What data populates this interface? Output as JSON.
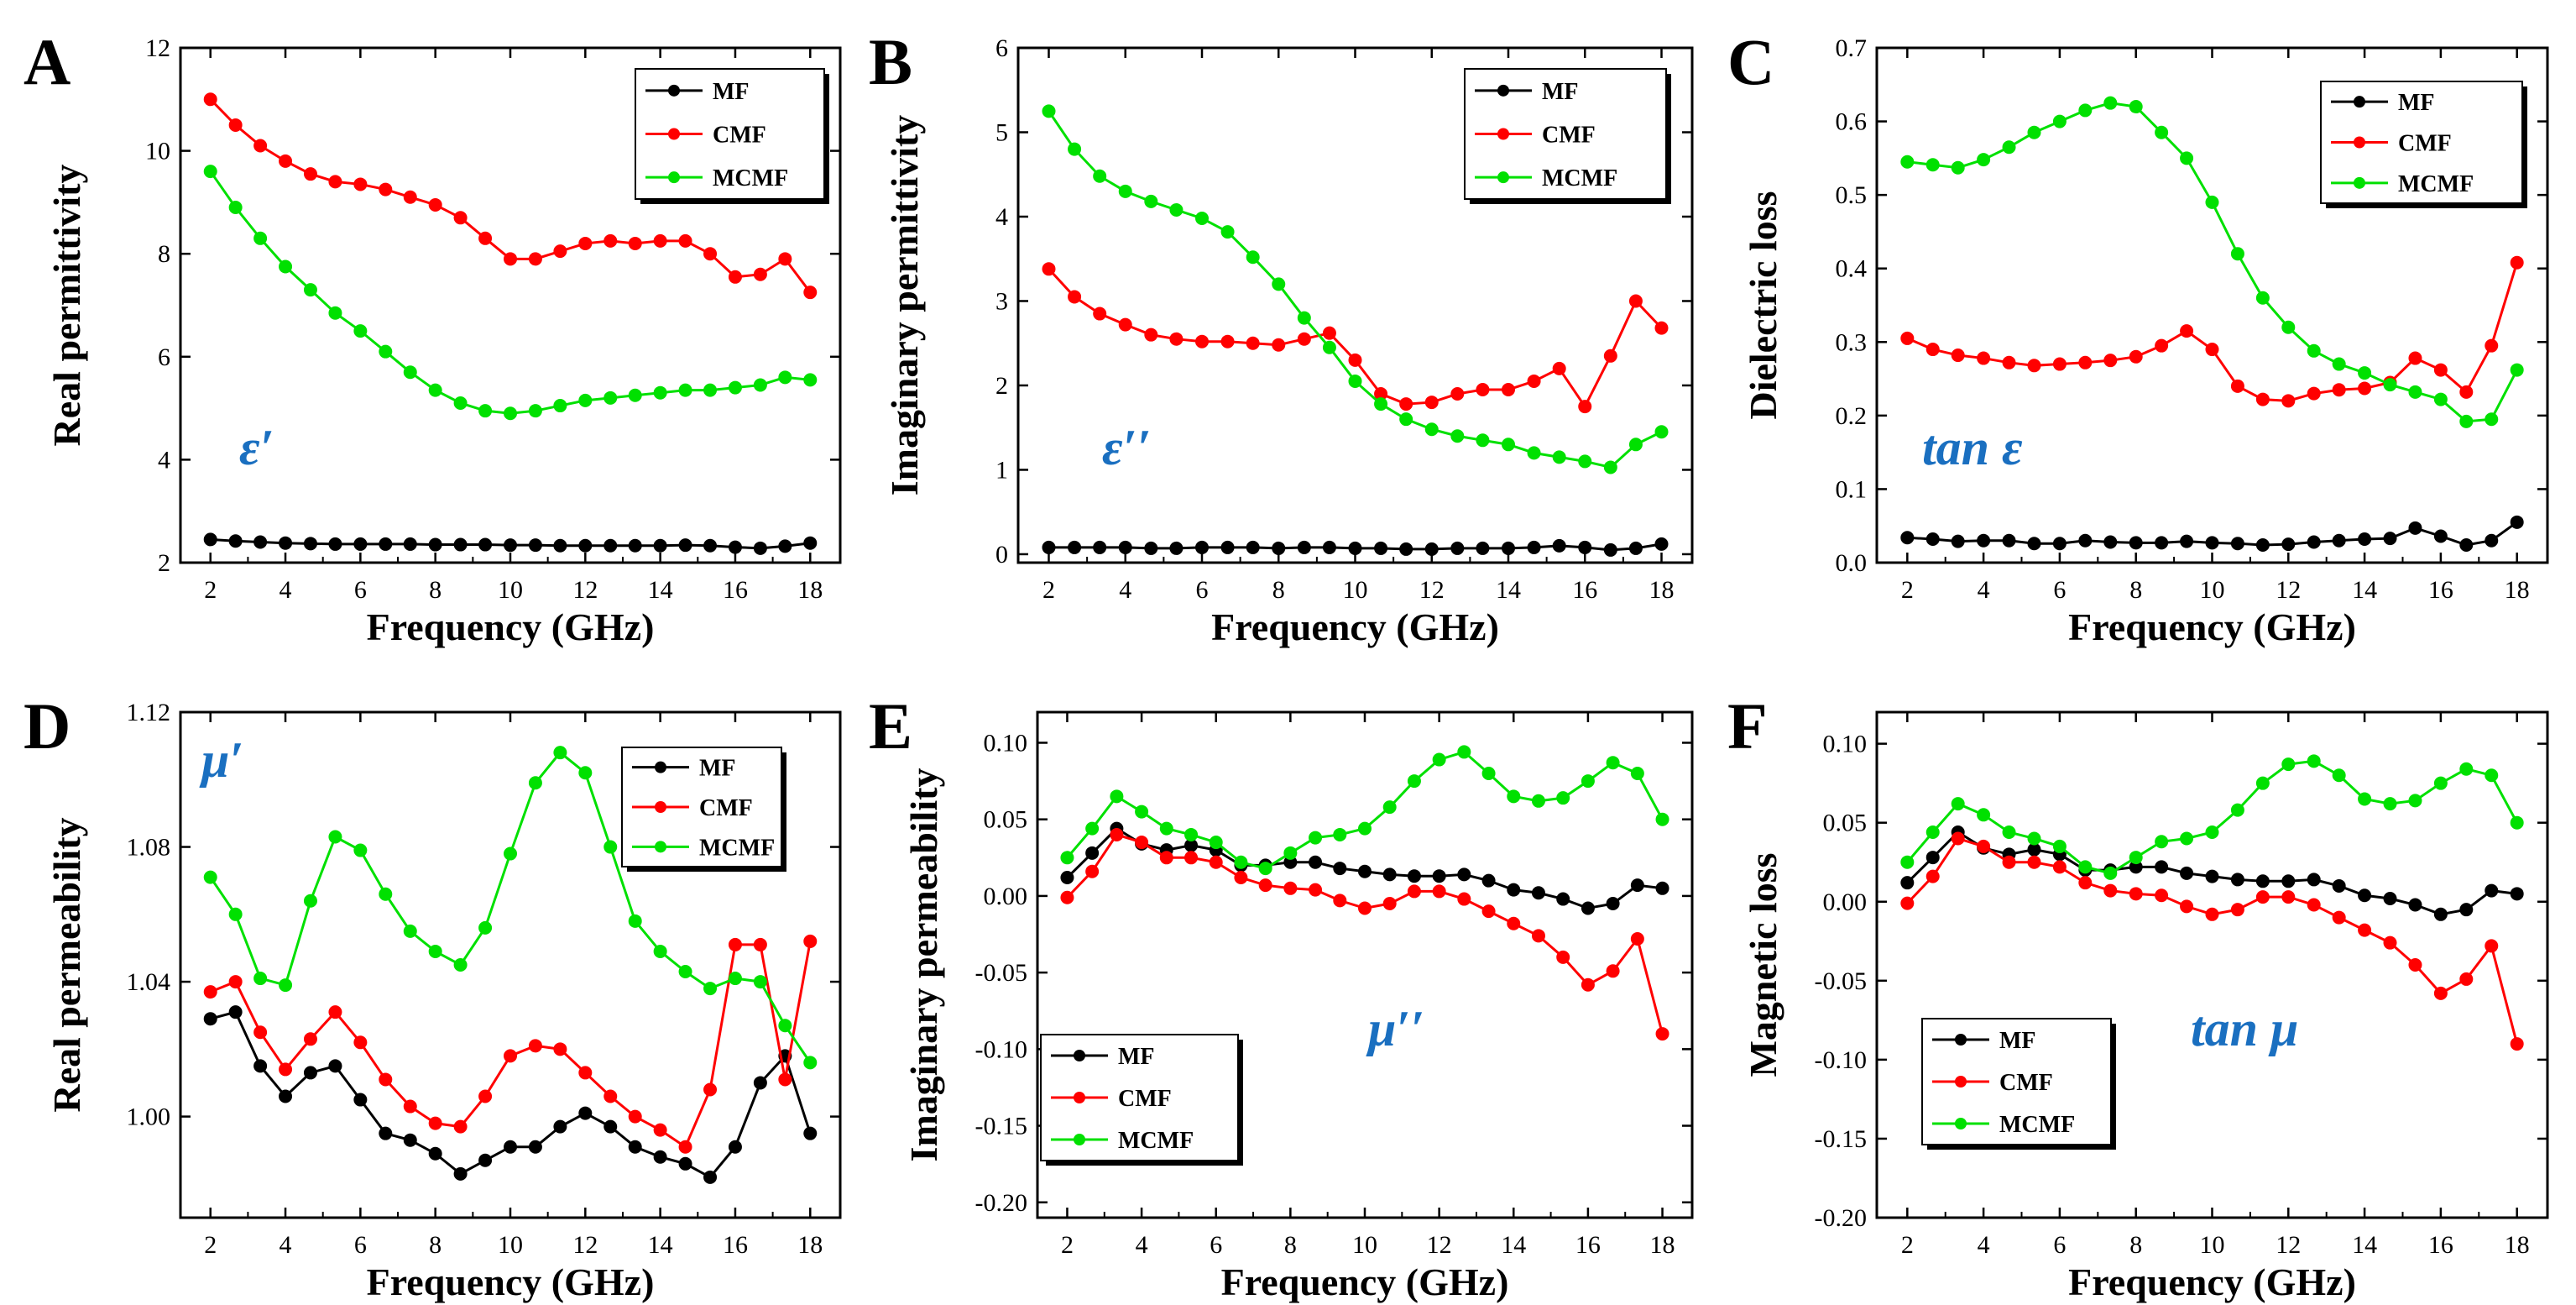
{
  "figure": {
    "background": "#ffffff"
  },
  "series_styles": {
    "MF": {
      "color": "#000000"
    },
    "CMF": {
      "color": "#ff0000"
    },
    "MCMF": {
      "color": "#00e000"
    }
  },
  "annotation_color": "#1a6fc0",
  "chart_data": [
    {
      "panel": "A",
      "type": "line",
      "title": "",
      "xlabel": "Frequency (GHz)",
      "ylabel": "Real permittivity",
      "xlim": [
        1.2,
        18.8
      ],
      "ylim": [
        2,
        12
      ],
      "xticks": [
        "2",
        "4",
        "6",
        "8",
        "10",
        "12",
        "14",
        "16",
        "18"
      ],
      "yticks": [
        "2",
        "4",
        "6",
        "8",
        "10",
        "12"
      ],
      "annotation": "ε′",
      "legend": "top-right",
      "x": [
        2,
        2.67,
        3.33,
        4,
        4.67,
        5.33,
        6,
        6.67,
        7.33,
        8,
        8.67,
        9.33,
        10,
        10.67,
        11.33,
        12,
        12.67,
        13.33,
        14,
        14.67,
        15.33,
        16,
        16.67,
        17.33,
        18
      ],
      "series": [
        {
          "name": "MF",
          "values": [
            2.45,
            2.42,
            2.4,
            2.38,
            2.37,
            2.36,
            2.36,
            2.36,
            2.36,
            2.35,
            2.35,
            2.35,
            2.34,
            2.34,
            2.33,
            2.33,
            2.33,
            2.33,
            2.33,
            2.34,
            2.33,
            2.3,
            2.28,
            2.32,
            2.38
          ]
        },
        {
          "name": "CMF",
          "values": [
            11.0,
            10.5,
            10.1,
            9.8,
            9.55,
            9.4,
            9.35,
            9.25,
            9.1,
            8.95,
            8.7,
            8.3,
            7.9,
            7.9,
            8.05,
            8.2,
            8.25,
            8.2,
            8.25,
            8.25,
            8.0,
            7.55,
            7.6,
            7.9,
            7.25
          ]
        },
        {
          "name": "MCMF",
          "values": [
            9.6,
            8.9,
            8.3,
            7.75,
            7.3,
            6.85,
            6.5,
            6.1,
            5.7,
            5.35,
            5.1,
            4.95,
            4.9,
            4.95,
            5.05,
            5.15,
            5.2,
            5.25,
            5.3,
            5.35,
            5.35,
            5.4,
            5.45,
            5.6,
            5.55
          ]
        }
      ]
    },
    {
      "panel": "B",
      "type": "line",
      "title": "",
      "xlabel": "Frequency (GHz)",
      "ylabel": "Imaginary permittivity",
      "xlim": [
        1.2,
        18.8
      ],
      "ylim": [
        -0.1,
        6
      ],
      "xticks": [
        "2",
        "4",
        "6",
        "8",
        "10",
        "12",
        "14",
        "16",
        "18"
      ],
      "yticks": [
        "0",
        "1",
        "2",
        "3",
        "4",
        "5",
        "6"
      ],
      "annotation": "ε′′",
      "legend": "top-right",
      "x": [
        2,
        2.67,
        3.33,
        4,
        4.67,
        5.33,
        6,
        6.67,
        7.33,
        8,
        8.67,
        9.33,
        10,
        10.67,
        11.33,
        12,
        12.67,
        13.33,
        14,
        14.67,
        15.33,
        16,
        16.67,
        17.33,
        18
      ],
      "series": [
        {
          "name": "MF",
          "values": [
            0.08,
            0.08,
            0.08,
            0.08,
            0.07,
            0.07,
            0.08,
            0.08,
            0.08,
            0.07,
            0.08,
            0.08,
            0.07,
            0.07,
            0.06,
            0.06,
            0.07,
            0.07,
            0.07,
            0.08,
            0.1,
            0.08,
            0.05,
            0.07,
            0.12
          ]
        },
        {
          "name": "CMF",
          "values": [
            3.38,
            3.05,
            2.85,
            2.72,
            2.6,
            2.55,
            2.52,
            2.52,
            2.5,
            2.48,
            2.55,
            2.62,
            2.3,
            1.9,
            1.78,
            1.8,
            1.9,
            1.95,
            1.95,
            2.05,
            2.2,
            1.75,
            2.35,
            3.0,
            2.68
          ]
        },
        {
          "name": "MCMF",
          "values": [
            5.25,
            4.8,
            4.48,
            4.3,
            4.18,
            4.08,
            3.98,
            3.82,
            3.52,
            3.2,
            2.8,
            2.45,
            2.05,
            1.78,
            1.6,
            1.48,
            1.4,
            1.35,
            1.3,
            1.2,
            1.15,
            1.1,
            1.03,
            1.3,
            1.45
          ]
        }
      ]
    },
    {
      "panel": "C",
      "type": "line",
      "title": "",
      "xlabel": "Frequency (GHz)",
      "ylabel": "Dielectric loss",
      "xlim": [
        1.2,
        18.8
      ],
      "ylim": [
        0,
        0.7
      ],
      "xticks": [
        "2",
        "4",
        "6",
        "8",
        "10",
        "12",
        "14",
        "16",
        "18"
      ],
      "yticks": [
        "0.0",
        "0.1",
        "0.2",
        "0.3",
        "0.4",
        "0.5",
        "0.6",
        "0.7"
      ],
      "annotation": "tan ε",
      "legend": "top-right",
      "x": [
        2,
        2.67,
        3.33,
        4,
        4.67,
        5.33,
        6,
        6.67,
        7.33,
        8,
        8.67,
        9.33,
        10,
        10.67,
        11.33,
        12,
        12.67,
        13.33,
        14,
        14.67,
        15.33,
        16,
        16.67,
        17.33,
        18
      ],
      "series": [
        {
          "name": "MF",
          "values": [
            0.034,
            0.032,
            0.029,
            0.03,
            0.03,
            0.026,
            0.026,
            0.03,
            0.028,
            0.027,
            0.027,
            0.029,
            0.027,
            0.026,
            0.024,
            0.025,
            0.028,
            0.03,
            0.032,
            0.033,
            0.047,
            0.036,
            0.024,
            0.03,
            0.055
          ]
        },
        {
          "name": "CMF",
          "values": [
            0.305,
            0.29,
            0.282,
            0.278,
            0.272,
            0.268,
            0.27,
            0.272,
            0.275,
            0.28,
            0.295,
            0.315,
            0.29,
            0.24,
            0.222,
            0.22,
            0.23,
            0.235,
            0.237,
            0.245,
            0.278,
            0.262,
            0.232,
            0.295,
            0.408
          ]
        },
        {
          "name": "MCMF",
          "values": [
            0.545,
            0.541,
            0.537,
            0.548,
            0.565,
            0.585,
            0.6,
            0.615,
            0.625,
            0.62,
            0.585,
            0.55,
            0.49,
            0.42,
            0.36,
            0.32,
            0.288,
            0.27,
            0.258,
            0.242,
            0.232,
            0.222,
            0.192,
            0.195,
            0.262
          ]
        }
      ]
    },
    {
      "panel": "D",
      "type": "line",
      "title": "",
      "xlabel": "Frequency (GHz)",
      "ylabel": "Real permeability",
      "xlim": [
        1.2,
        18.8
      ],
      "ylim": [
        0.97,
        1.12
      ],
      "xticks": [
        "2",
        "4",
        "6",
        "8",
        "10",
        "12",
        "14",
        "16",
        "18"
      ],
      "yticks": [
        "1.00",
        "1.04",
        "1.08",
        "1.12"
      ],
      "annotation": "μ′",
      "legend": "top-right",
      "x": [
        2,
        2.67,
        3.33,
        4,
        4.67,
        5.33,
        6,
        6.67,
        7.33,
        8,
        8.67,
        9.33,
        10,
        10.67,
        11.33,
        12,
        12.67,
        13.33,
        14,
        14.67,
        15.33,
        16,
        16.67,
        17.33,
        18
      ],
      "series": [
        {
          "name": "MF",
          "values": [
            1.029,
            1.031,
            1.015,
            1.006,
            1.013,
            1.015,
            1.005,
            0.995,
            0.993,
            0.989,
            0.983,
            0.987,
            0.991,
            0.991,
            0.997,
            1.001,
            0.997,
            0.991,
            0.988,
            0.986,
            0.982,
            0.991,
            1.01,
            1.018,
            0.995
          ]
        },
        {
          "name": "CMF",
          "values": [
            1.037,
            1.04,
            1.025,
            1.014,
            1.023,
            1.031,
            1.022,
            1.011,
            1.003,
            0.998,
            0.997,
            1.006,
            1.018,
            1.021,
            1.02,
            1.013,
            1.006,
            1.0,
            0.996,
            0.991,
            1.008,
            1.051,
            1.051,
            1.011,
            1.052
          ]
        },
        {
          "name": "MCMF",
          "values": [
            1.071,
            1.06,
            1.041,
            1.039,
            1.064,
            1.083,
            1.079,
            1.066,
            1.055,
            1.049,
            1.045,
            1.056,
            1.078,
            1.099,
            1.108,
            1.102,
            1.08,
            1.058,
            1.049,
            1.043,
            1.038,
            1.041,
            1.04,
            1.027,
            1.016
          ]
        }
      ]
    },
    {
      "panel": "E",
      "type": "line",
      "title": "",
      "xlabel": "Frequency (GHz)",
      "ylabel": "Imaginary permeability",
      "xlim": [
        1.2,
        18.8
      ],
      "ylim": [
        -0.21,
        0.12
      ],
      "xticks": [
        "2",
        "4",
        "6",
        "8",
        "10",
        "12",
        "14",
        "16",
        "18"
      ],
      "yticks": [
        "-0.20",
        "-0.15",
        "-0.10",
        "-0.05",
        "0.00",
        "0.05",
        "0.10"
      ],
      "annotation": "μ′′",
      "legend": "bottom-left",
      "x": [
        2,
        2.67,
        3.33,
        4,
        4.67,
        5.33,
        6,
        6.67,
        7.33,
        8,
        8.67,
        9.33,
        10,
        10.67,
        11.33,
        12,
        12.67,
        13.33,
        14,
        14.67,
        15.33,
        16,
        16.67,
        17.33,
        18
      ],
      "series": [
        {
          "name": "MF",
          "values": [
            0.012,
            0.028,
            0.044,
            0.034,
            0.03,
            0.033,
            0.03,
            0.02,
            0.02,
            0.022,
            0.022,
            0.018,
            0.016,
            0.014,
            0.013,
            0.013,
            0.014,
            0.01,
            0.004,
            0.002,
            -0.002,
            -0.008,
            -0.005,
            0.007,
            0.005
          ]
        },
        {
          "name": "CMF",
          "values": [
            -0.001,
            0.016,
            0.04,
            0.035,
            0.025,
            0.025,
            0.022,
            0.012,
            0.007,
            0.005,
            0.004,
            -0.003,
            -0.008,
            -0.005,
            0.003,
            0.003,
            -0.002,
            -0.01,
            -0.018,
            -0.026,
            -0.04,
            -0.058,
            -0.049,
            -0.028,
            -0.09
          ]
        },
        {
          "name": "MCMF",
          "values": [
            0.025,
            0.044,
            0.065,
            0.055,
            0.044,
            0.04,
            0.035,
            0.022,
            0.018,
            0.028,
            0.038,
            0.04,
            0.044,
            0.058,
            0.075,
            0.089,
            0.094,
            0.08,
            0.065,
            0.062,
            0.064,
            0.075,
            0.087,
            0.08,
            0.05
          ]
        }
      ]
    },
    {
      "panel": "F",
      "type": "line",
      "title": "",
      "xlabel": "Frequency (GHz)",
      "ylabel": "Magnetic loss",
      "xlim": [
        1.2,
        18.8
      ],
      "ylim": [
        -0.2,
        0.12
      ],
      "xticks": [
        "2",
        "4",
        "6",
        "8",
        "10",
        "12",
        "14",
        "16",
        "18"
      ],
      "yticks": [
        "-0.20",
        "-0.15",
        "-0.10",
        "-0.05",
        "0.00",
        "0.05",
        "0.10"
      ],
      "annotation": "tan μ",
      "legend": "bottom-left",
      "x": [
        2,
        2.67,
        3.33,
        4,
        4.67,
        5.33,
        6,
        6.67,
        7.33,
        8,
        8.67,
        9.33,
        10,
        10.67,
        11.33,
        12,
        12.67,
        13.33,
        14,
        14.67,
        15.33,
        16,
        16.67,
        17.33,
        18
      ],
      "series": [
        {
          "name": "MF",
          "values": [
            0.012,
            0.028,
            0.044,
            0.034,
            0.03,
            0.033,
            0.03,
            0.02,
            0.02,
            0.022,
            0.022,
            0.018,
            0.016,
            0.014,
            0.013,
            0.013,
            0.014,
            0.01,
            0.004,
            0.002,
            -0.002,
            -0.008,
            -0.005,
            0.007,
            0.005
          ]
        },
        {
          "name": "CMF",
          "values": [
            -0.001,
            0.016,
            0.04,
            0.035,
            0.025,
            0.025,
            0.022,
            0.012,
            0.007,
            0.005,
            0.004,
            -0.003,
            -0.008,
            -0.005,
            0.003,
            0.003,
            -0.002,
            -0.01,
            -0.018,
            -0.026,
            -0.04,
            -0.058,
            -0.049,
            -0.028,
            -0.09
          ]
        },
        {
          "name": "MCMF",
          "values": [
            0.025,
            0.044,
            0.062,
            0.055,
            0.044,
            0.04,
            0.035,
            0.022,
            0.018,
            0.028,
            0.038,
            0.04,
            0.044,
            0.058,
            0.075,
            0.087,
            0.089,
            0.08,
            0.065,
            0.062,
            0.064,
            0.075,
            0.084,
            0.08,
            0.05
          ]
        }
      ]
    }
  ]
}
